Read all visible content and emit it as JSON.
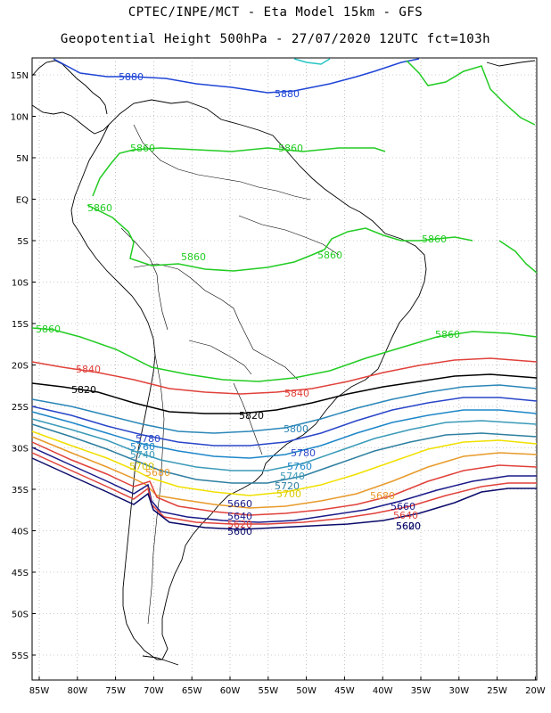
{
  "header": {
    "line1": "CPTEC/INPE/MCT -  Eta Model 15km - GFS",
    "line2": "Geopotential Height 500hPa - 27/07/2020 12UTC fct=103h"
  },
  "axes": {
    "lon_labels": [
      "85W",
      "80W",
      "75W",
      "70W",
      "65W",
      "60W",
      "55W",
      "50W",
      "45W",
      "40W",
      "35W",
      "30W",
      "25W",
      "20W"
    ],
    "lat_labels": [
      "15N",
      "10N",
      "5N",
      "EQ",
      "5S",
      "10S",
      "15S",
      "20S",
      "25S",
      "30S",
      "35S",
      "40S",
      "45S",
      "50S",
      "55S"
    ]
  },
  "contours": [
    {
      "value": "5880",
      "color": "#1f45d6"
    },
    {
      "value": "5860",
      "color": "#22cc22"
    },
    {
      "value": "5840",
      "color": "#e0413a"
    },
    {
      "value": "5820",
      "color": "#000000"
    },
    {
      "value": "5800",
      "color": "#2a86b8"
    },
    {
      "value": "5780",
      "color": "#2845c8"
    },
    {
      "value": "5760",
      "color": "#1d86c8"
    },
    {
      "value": "5740",
      "color": "#3a9ab8"
    },
    {
      "value": "5720",
      "color": "#2e7fa0"
    },
    {
      "value": "5700",
      "color": "#f0e000"
    },
    {
      "value": "5680",
      "color": "#e89a2a"
    },
    {
      "value": "5660",
      "color": "#e0413a"
    },
    {
      "value": "5640",
      "color": "#1a1a8a"
    },
    {
      "value": "5620",
      "color": "#e0413a"
    },
    {
      "value": "5600",
      "color": "#0a0a6a"
    }
  ],
  "labels": {
    "l5880a": "5880",
    "l5880b": "5880",
    "l5860a": "5860",
    "l5860b": "5860",
    "l5860c": "5860",
    "l5860d": "5860",
    "l5860e": "5860",
    "l5860f": "5860",
    "l5860g": "5860",
    "l5860h": "5860",
    "l5840a": "5840",
    "l5840b": "5840",
    "l5820a": "5820",
    "l5820b": "5820",
    "l5800": "5800",
    "l5780a": "5780",
    "l5780b": "5780",
    "l5760a": "5760",
    "l5760b": "5760",
    "l5740a": "5740",
    "l5740b": "5740",
    "l5720": "5720",
    "l5700a": "5700",
    "l5700b": "5700",
    "l5680a": "5680",
    "l5680b": "5680",
    "l5660a": "5660",
    "l5660b": "5660",
    "l5640a": "5640",
    "l5640b": "5640",
    "l5620a": "5620",
    "l5620b": "5620",
    "l5600a": "5600",
    "l5600b": "5600"
  }
}
